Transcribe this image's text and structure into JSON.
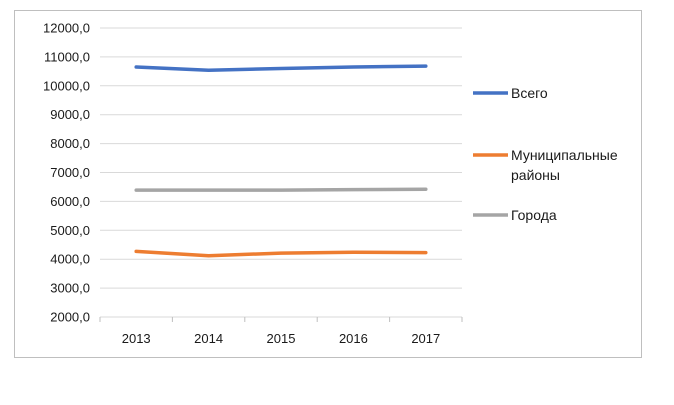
{
  "chart_data": {
    "type": "line",
    "categories": [
      "2013",
      "2014",
      "2015",
      "2016",
      "2017"
    ],
    "ylim": [
      2000,
      12000
    ],
    "yticks": [
      "2000,0",
      "3000,0",
      "4000,0",
      "5000,0",
      "6000,0",
      "7000,0",
      "8000,0",
      "9000,0",
      "10000,0",
      "11000,0",
      "12000,0"
    ],
    "ytick_values": [
      2000,
      3000,
      4000,
      5000,
      6000,
      7000,
      8000,
      9000,
      10000,
      11000,
      12000
    ],
    "grid": true,
    "legend_position": "right",
    "series": [
      {
        "name": "Всего",
        "name_lines": [
          "Всего"
        ],
        "color": "#4472c4",
        "values": [
          10650,
          10540,
          10600,
          10650,
          10680
        ]
      },
      {
        "name": "Муниципальные районы",
        "name_lines": [
          "Муниципальные",
          "районы"
        ],
        "color": "#ed7d31",
        "values": [
          4270,
          4120,
          4210,
          4240,
          4230
        ]
      },
      {
        "name": "Города",
        "name_lines": [
          "Города"
        ],
        "color": "#a5a5a5",
        "values": [
          6390,
          6390,
          6390,
          6410,
          6420
        ]
      }
    ]
  }
}
